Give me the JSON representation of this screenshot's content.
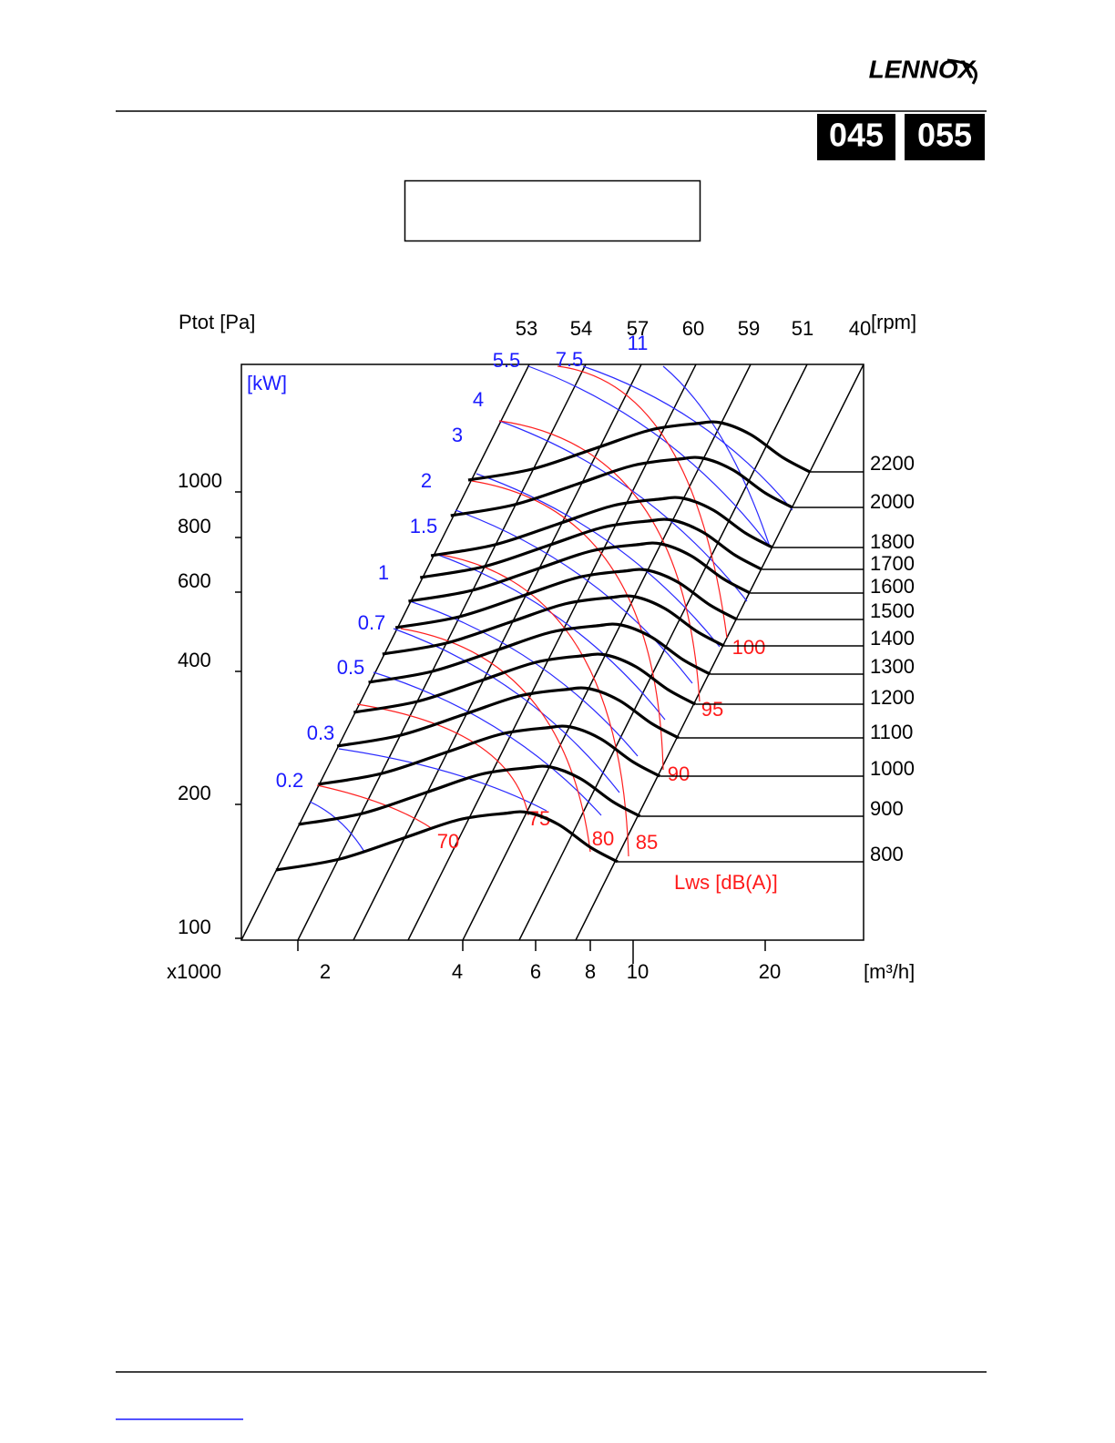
{
  "header": {
    "logo": "LENNOX",
    "models": [
      "045",
      "055"
    ]
  },
  "chart": {
    "y_axis_title": "Ptot [Pa]",
    "y_ticks": [
      "1000",
      "800",
      "600",
      "400",
      "200",
      "100"
    ],
    "x_prefix": "x1000",
    "x_ticks": [
      "2",
      "4",
      "6",
      "8",
      "10",
      "20"
    ],
    "x_unit": "[m³/h]",
    "top_labels": [
      "53",
      "54",
      "57",
      "60",
      "59",
      "51",
      "40"
    ],
    "top_unit": "[rpm]",
    "kw_unit": "[kW]",
    "kw_labels": [
      "5.5",
      "7.5",
      "11",
      "4",
      "3",
      "2",
      "1.5",
      "1",
      "0.7",
      "0.5",
      "0.3",
      "0.2"
    ],
    "rpm_labels": [
      "2200",
      "2000",
      "1800",
      "1700",
      "1600",
      "1500",
      "1400",
      "1300",
      "1200",
      "1100",
      "1000",
      "900",
      "800"
    ],
    "db_labels": [
      "100",
      "95",
      "90",
      "85",
      "80",
      "75",
      "70"
    ],
    "db_unit": "Lws [dB(A)]"
  }
}
